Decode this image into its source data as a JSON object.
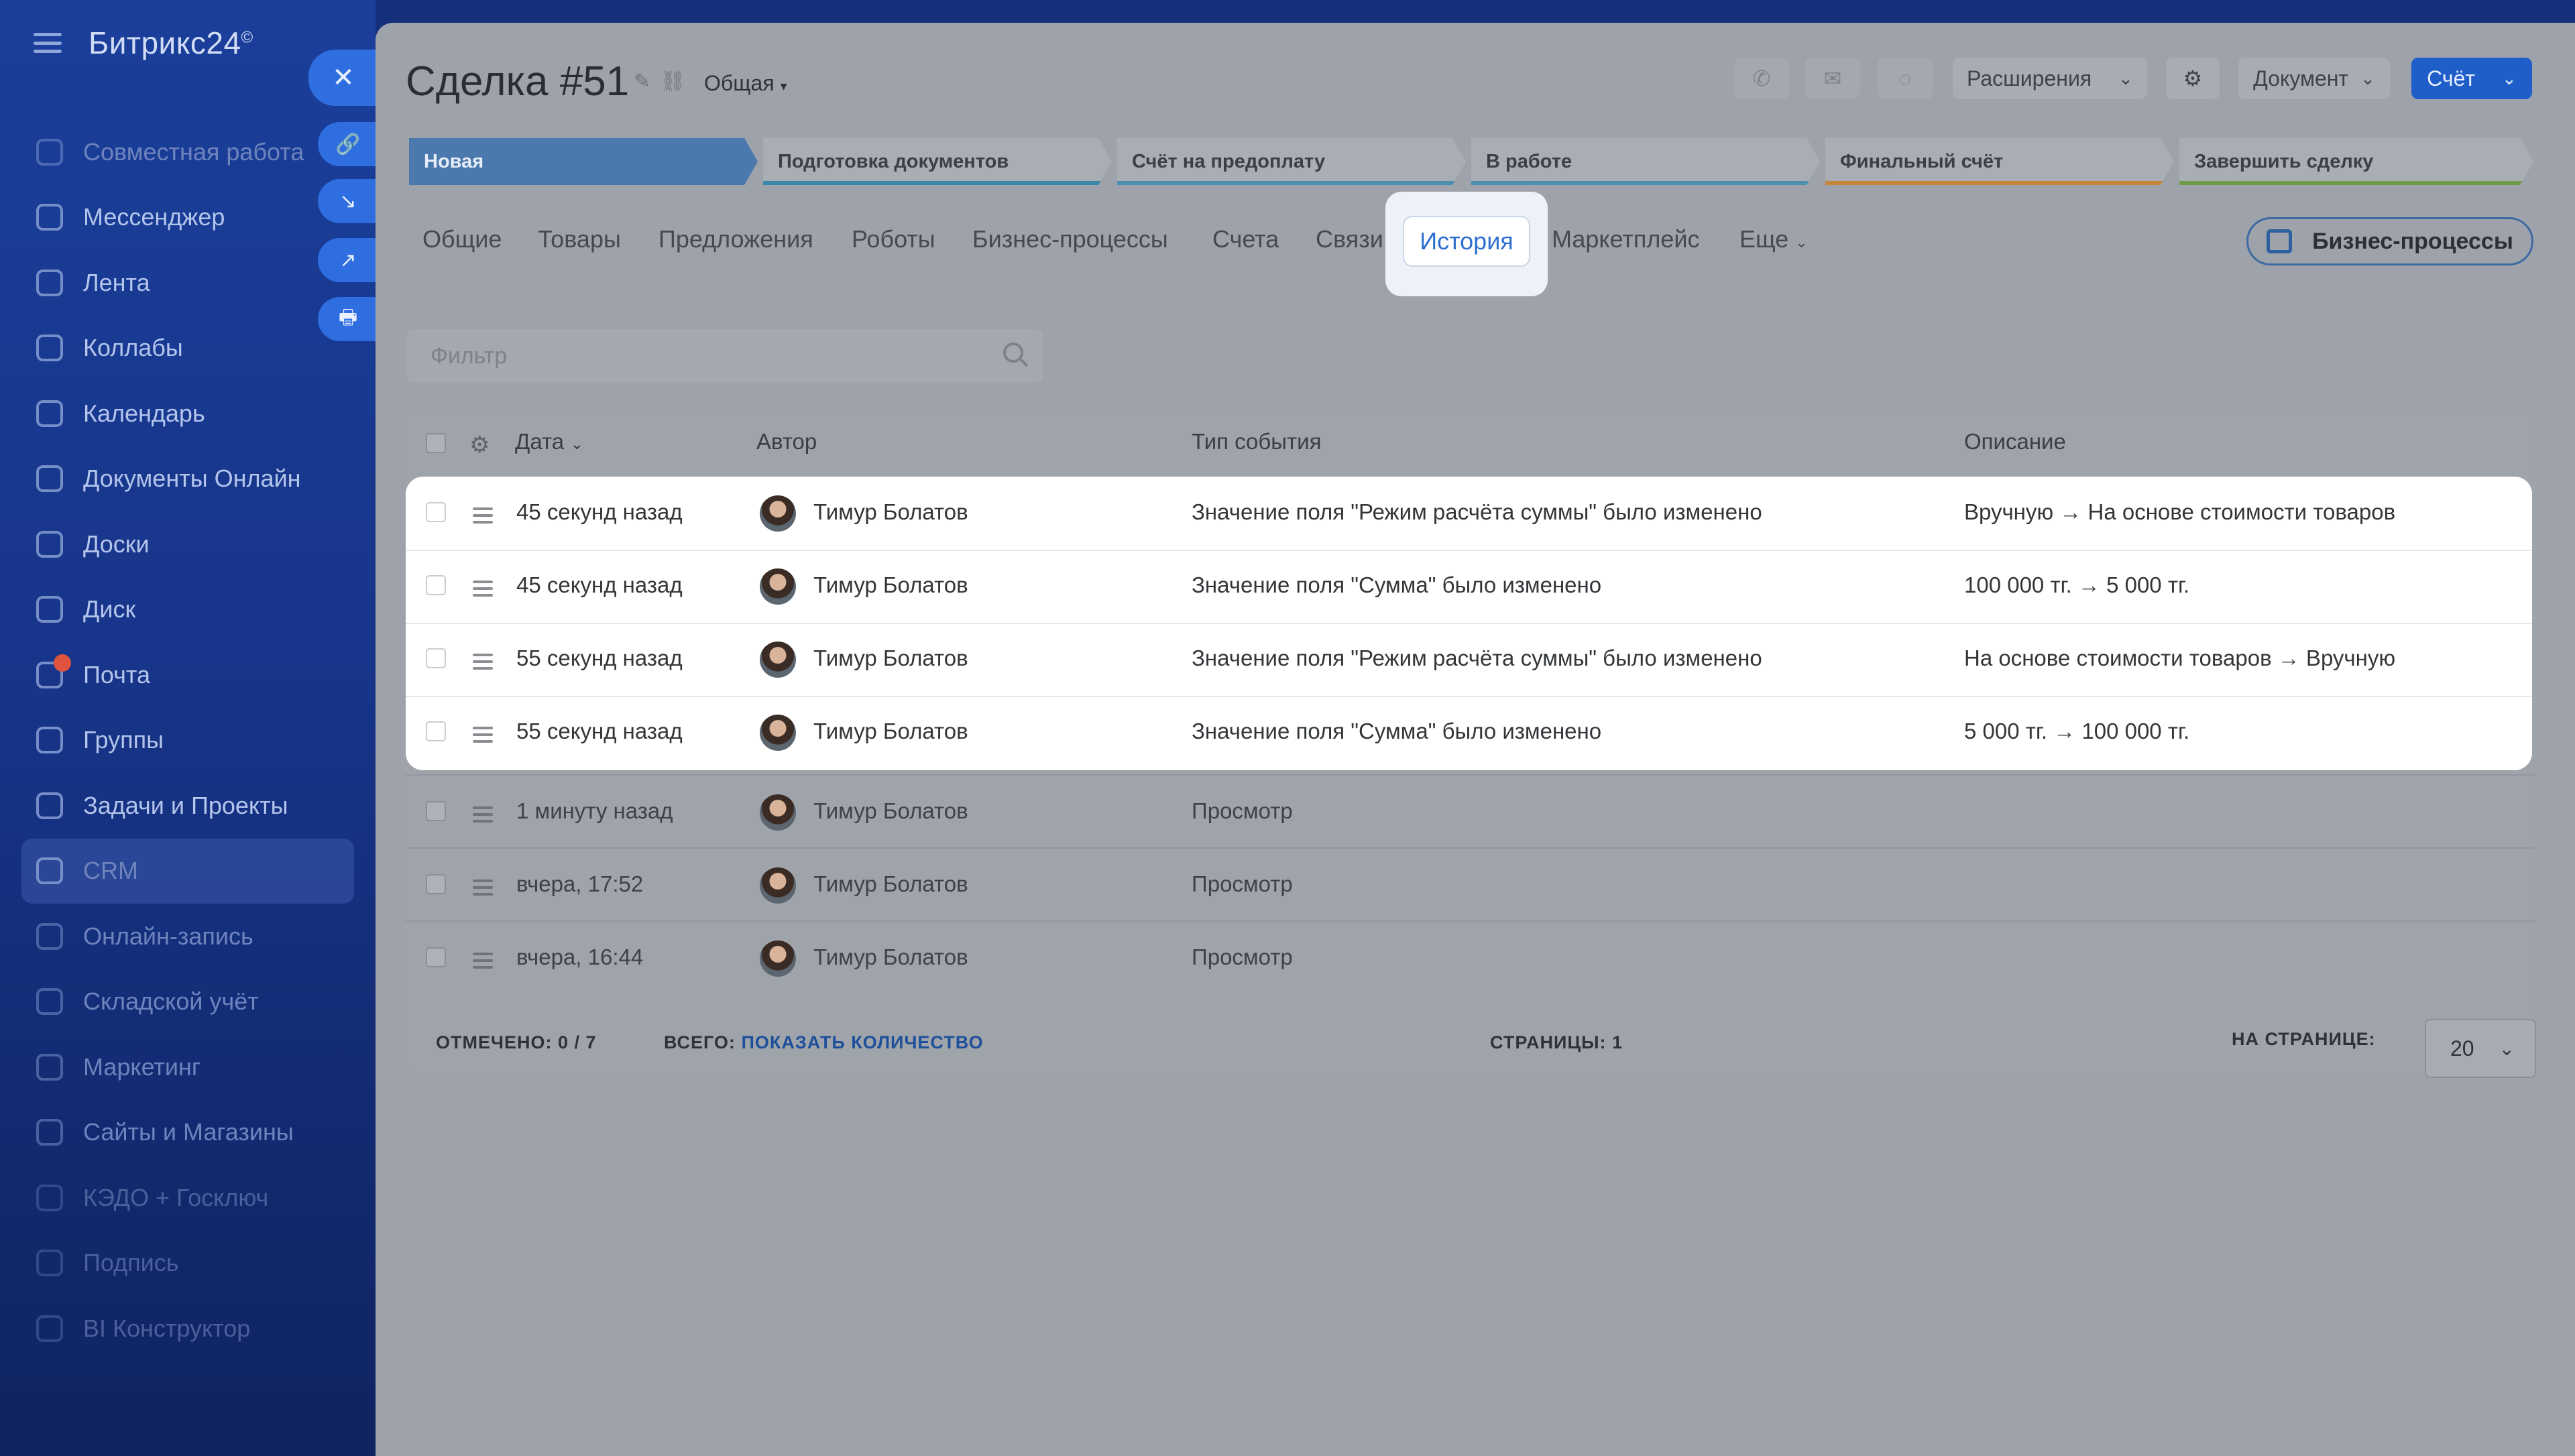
{
  "sidebar": {
    "brand": "Битрикс24",
    "brand_mark": "©",
    "items": [
      {
        "label": "Совместная работа",
        "icon": "collab-icon"
      },
      {
        "label": "Мессенджер",
        "icon": "chat-icon"
      },
      {
        "label": "Лента",
        "icon": "feed-icon"
      },
      {
        "label": "Коллабы",
        "icon": "collabs-icon"
      },
      {
        "label": "Календарь",
        "icon": "calendar-icon"
      },
      {
        "label": "Документы Онлайн",
        "icon": "docs-icon"
      },
      {
        "label": "Доски",
        "icon": "boards-icon"
      },
      {
        "label": "Диск",
        "icon": "disk-icon"
      },
      {
        "label": "Почта",
        "icon": "mail-icon"
      },
      {
        "label": "Группы",
        "icon": "groups-icon"
      },
      {
        "label": "Задачи и Проекты",
        "icon": "tasks-icon"
      },
      {
        "label": "CRM",
        "icon": "crm-icon"
      },
      {
        "label": "Онлайн-запись",
        "icon": "booking-icon"
      },
      {
        "label": "Складской учёт",
        "icon": "warehouse-icon"
      },
      {
        "label": "Маркетинг",
        "icon": "marketing-icon"
      },
      {
        "label": "Сайты и Магазины",
        "icon": "shop-icon"
      },
      {
        "label": "КЭДО + Госключ",
        "icon": "kedo-icon"
      },
      {
        "label": "Подпись",
        "icon": "sign-icon"
      },
      {
        "label": "BI Конструктор",
        "icon": "bi-icon"
      }
    ]
  },
  "side_actions": {
    "close": "✕",
    "link": "🔗",
    "import": "↘",
    "open": "↗",
    "print": "🖶"
  },
  "header": {
    "title": "Сделка #51",
    "category": "Общая",
    "extensions_label": "Расширения",
    "document_label": "Документ",
    "invoice_label": "Счёт"
  },
  "pipeline": [
    {
      "label": "Новая"
    },
    {
      "label": "Подготовка документов"
    },
    {
      "label": "Счёт на предоплату"
    },
    {
      "label": "В работе"
    },
    {
      "label": "Финальный счёт"
    },
    {
      "label": "Завершить сделку"
    }
  ],
  "tabs": [
    {
      "label": "Общие"
    },
    {
      "label": "Товары"
    },
    {
      "label": "Предложения"
    },
    {
      "label": "Роботы"
    },
    {
      "label": "Бизнес-процессы"
    },
    {
      "label": "Счета"
    },
    {
      "label": "Связи"
    },
    {
      "label": "История"
    },
    {
      "label": "Маркетплейс"
    },
    {
      "label": "Еще"
    }
  ],
  "active_tab": "История",
  "bp_button": "Бизнес-процессы",
  "filter_placeholder": "Фильтр",
  "grid": {
    "columns": [
      "Дата",
      "Автор",
      "Тип события",
      "Описание"
    ],
    "rows": [
      {
        "date": "45 секунд назад",
        "author": "Тимур Болатов",
        "event": "Значение поля \"Режим расчёта суммы\" было изменено",
        "desc": "Вручную → На основе стоимости товаров"
      },
      {
        "date": "45 секунд назад",
        "author": "Тимур Болатов",
        "event": "Значение поля \"Сумма\" было изменено",
        "desc": "100 000 тг. → 5 000 тг."
      },
      {
        "date": "55 секунд назад",
        "author": "Тимур Болатов",
        "event": "Значение поля \"Режим расчёта суммы\" было изменено",
        "desc": "На основе стоимости товаров → Вручную"
      },
      {
        "date": "55 секунд назад",
        "author": "Тимур Болатов",
        "event": "Значение поля \"Сумма\" было изменено",
        "desc": "5 000 тг. → 100 000 тг."
      },
      {
        "date": "1 минуту назад",
        "author": "Тимур Болатов",
        "event": "Просмотр",
        "desc": ""
      },
      {
        "date": "вчера, 17:52",
        "author": "Тимур Болатов",
        "event": "Просмотр",
        "desc": ""
      },
      {
        "date": "вчера, 16:44",
        "author": "Тимур Болатов",
        "event": "Просмотр",
        "desc": ""
      }
    ],
    "footer": {
      "checked_label": "ОТМЕЧЕНО:",
      "checked_value": "0 / 7",
      "total_label": "ВСЕГО:",
      "total_link": "ПОКАЗАТЬ КОЛИЧЕСТВО",
      "pages_label": "СТРАНИЦЫ:",
      "pages_value": "1",
      "per_page_label": "НА СТРАНИЦЕ:",
      "per_page_value": "20"
    }
  },
  "colors": {
    "accent": "#2d6fcf",
    "primary_button": "#1f5ec9",
    "overlay": "#9ea3ab"
  }
}
